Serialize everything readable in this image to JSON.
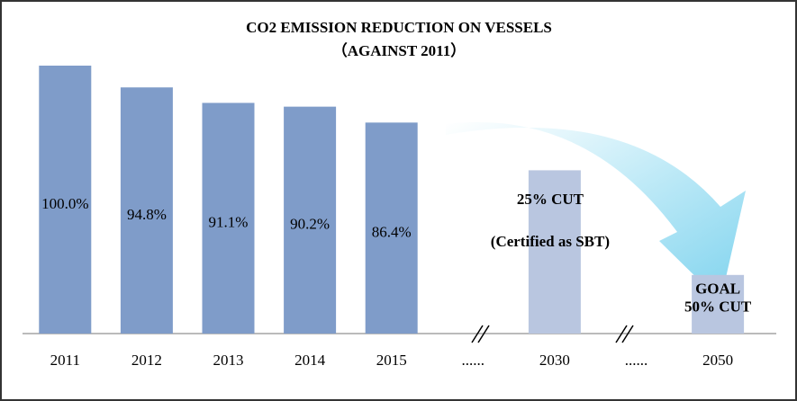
{
  "chart_data": {
    "type": "bar",
    "title": "CO2 EMISSION REDUCTION ON VESSELS",
    "subtitle": "（AGAINST 2011）",
    "categories": [
      "2011",
      "2012",
      "2013",
      "2014",
      "2015",
      "......",
      "2030",
      "......",
      "2050"
    ],
    "values": [
      100,
      94.8,
      91.1,
      90.2,
      86.4,
      null,
      75,
      null,
      50
    ],
    "value_labels": [
      "100.0%",
      "94.8%",
      "91.1%",
      "90.2%",
      "86.4%",
      null,
      null,
      null,
      null
    ],
    "colors": [
      "#7f9cc9",
      "#7f9cc9",
      "#7f9cc9",
      "#7f9cc9",
      "#7f9cc9",
      null,
      "#b9c6e0",
      null,
      "#b9c6e0"
    ],
    "ylim": [
      36,
      100
    ],
    "annotations": [
      {
        "text": "25% CUT",
        "category": 6
      },
      {
        "text": "(Certified as SBT)",
        "category": 6,
        "color": "#ff0000"
      },
      {
        "text": "GOAL",
        "category": 8
      },
      {
        "text": "50% CUT",
        "category": 8
      }
    ]
  }
}
